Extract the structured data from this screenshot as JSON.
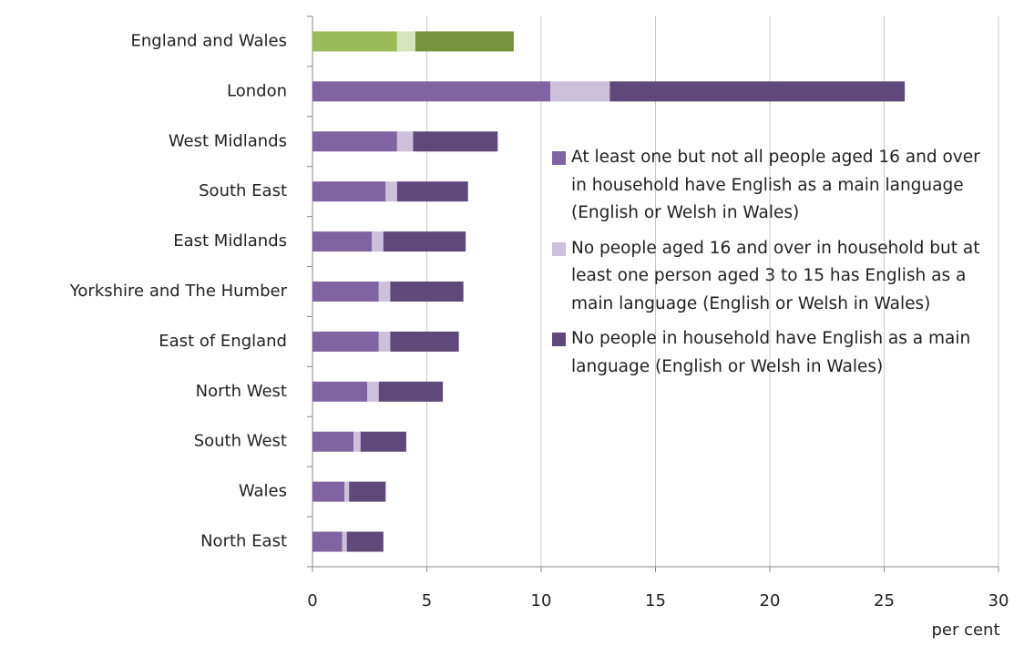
{
  "chart_data": {
    "type": "stacked_bar_horizontal",
    "categories": [
      "England and Wales",
      "London",
      "West Midlands",
      "South East",
      "East Midlands",
      "Yorkshire and The Humber",
      "East of England",
      "North West",
      "South West",
      "Wales",
      "North East"
    ],
    "series": [
      {
        "name": "At least one but not all people aged 16 and over in household have English as a main language (English or Welsh in Wales)",
        "color": "#8064a2",
        "highlight_color": "#9bbb59",
        "values": [
          3.7,
          10.4,
          3.7,
          3.2,
          2.6,
          2.9,
          2.9,
          2.4,
          1.8,
          1.4,
          1.3
        ]
      },
      {
        "name": "No people aged 16 and over in household but at least one person aged 3 to 15 has English as a main language (English or Welsh in Wales)",
        "color": "#ccc0da",
        "highlight_color": "#d7e4bd",
        "values": [
          0.8,
          2.6,
          0.7,
          0.5,
          0.5,
          0.5,
          0.5,
          0.5,
          0.3,
          0.2,
          0.2
        ]
      },
      {
        "name": "No people in household have English as a main language (English or Welsh in Wales)",
        "color": "#5f497a",
        "highlight_color": "#77933c",
        "values": [
          4.3,
          12.9,
          3.7,
          3.1,
          3.6,
          3.2,
          3.0,
          2.8,
          2.0,
          1.6,
          1.6
        ]
      }
    ],
    "highlight_category": "England and Wales",
    "xlabel": "per cent",
    "xlim": [
      0,
      30
    ],
    "xticks": [
      0,
      5,
      10,
      15,
      20,
      25,
      30
    ],
    "grid": true,
    "legend": "right"
  }
}
